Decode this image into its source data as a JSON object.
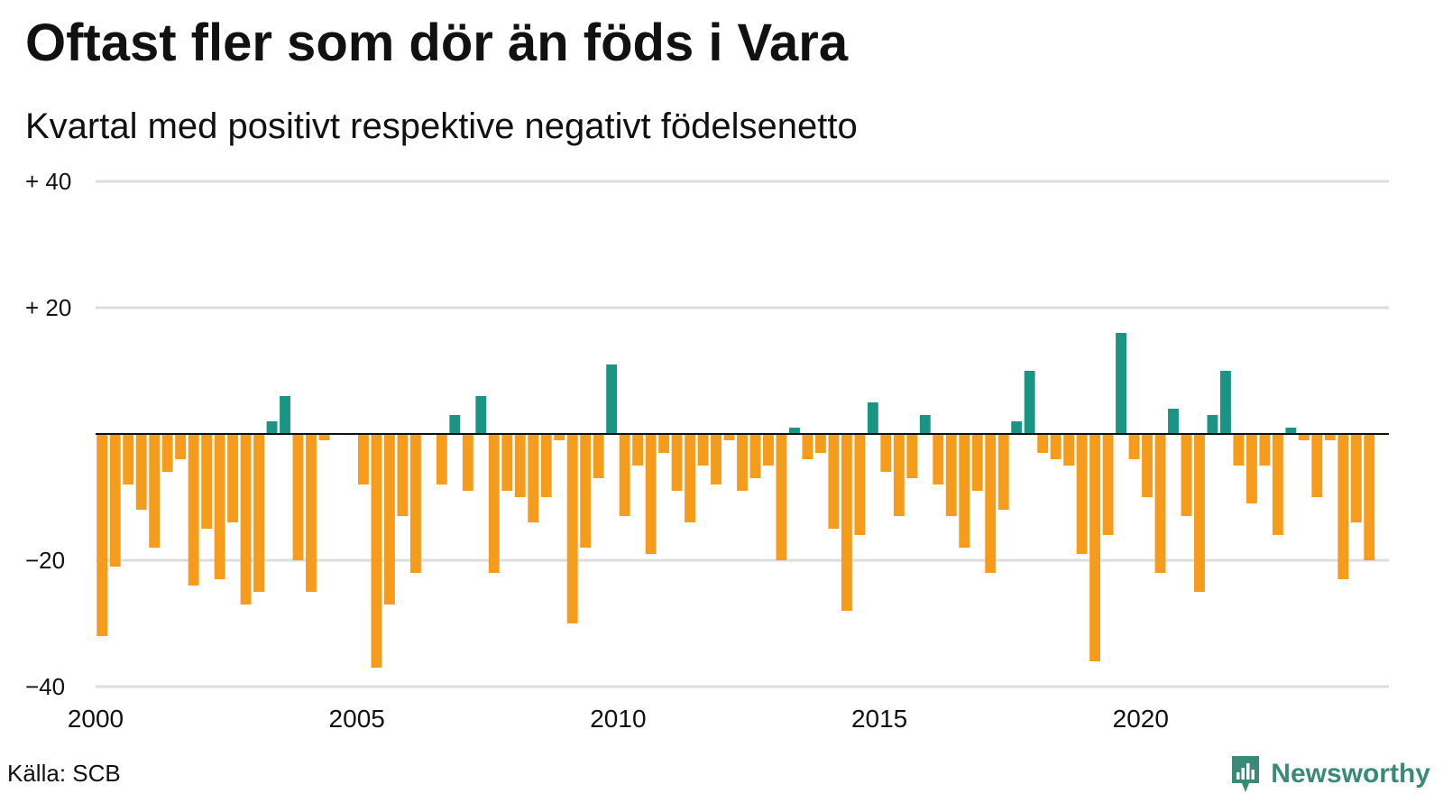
{
  "title": "Oftast fler som dör än föds i Vara",
  "subtitle": "Kvartal med positivt respektive negativt födelsenetto",
  "source": "Källa: SCB",
  "brand": {
    "name": "Newsworthy",
    "icon": "newsworthy-logo-icon"
  },
  "colors": {
    "positive": "#1a9485",
    "negative": "#f59c1c",
    "grid": "#dddddd",
    "zero": "#111111"
  },
  "chart_data": {
    "type": "bar",
    "title": "Oftast fler som dör än föds i Vara",
    "subtitle": "Kvartal med positivt respektive negativt födelsenetto",
    "ylim": [
      -40,
      40
    ],
    "yticks": [
      {
        "value": 40,
        "label": "+ 40"
      },
      {
        "value": 20,
        "label": "+ 20"
      },
      {
        "value": 0,
        "label": "0"
      },
      {
        "value": -20,
        "label": "−20"
      },
      {
        "value": -40,
        "label": "−40"
      }
    ],
    "xlim": [
      2000,
      2024.75
    ],
    "xticks": [
      {
        "value": 2000,
        "label": "2000"
      },
      {
        "value": 2005,
        "label": "2005"
      },
      {
        "value": 2010,
        "label": "2010"
      },
      {
        "value": 2015,
        "label": "2015"
      },
      {
        "value": 2020,
        "label": "2020"
      }
    ],
    "grid": true,
    "start_year": 2000,
    "periods_per_year": 4,
    "values": [
      -32,
      -21,
      -8,
      -12,
      -18,
      -6,
      -4,
      -24,
      -15,
      -23,
      -14,
      -27,
      -25,
      2,
      6,
      -20,
      -25,
      -1,
      0,
      0,
      -8,
      -37,
      -27,
      -13,
      -22,
      0,
      -8,
      3,
      -9,
      6,
      -22,
      -9,
      -10,
      -14,
      -10,
      -1,
      -30,
      -18,
      -7,
      11,
      -13,
      -5,
      -19,
      -3,
      -9,
      -14,
      -5,
      -8,
      -1,
      -9,
      -7,
      -5,
      -20,
      1,
      -4,
      -3,
      -15,
      -28,
      -16,
      5,
      -6,
      -13,
      -7,
      3,
      -8,
      -13,
      -18,
      -9,
      -22,
      -12,
      2,
      10,
      -3,
      -4,
      -5,
      -19,
      -36,
      -16,
      16,
      -4,
      -10,
      -22,
      4,
      -13,
      -25,
      3,
      10,
      -5,
      -11,
      -5,
      -16,
      1,
      -1,
      -10,
      -1,
      -23,
      -14,
      -20
    ]
  }
}
